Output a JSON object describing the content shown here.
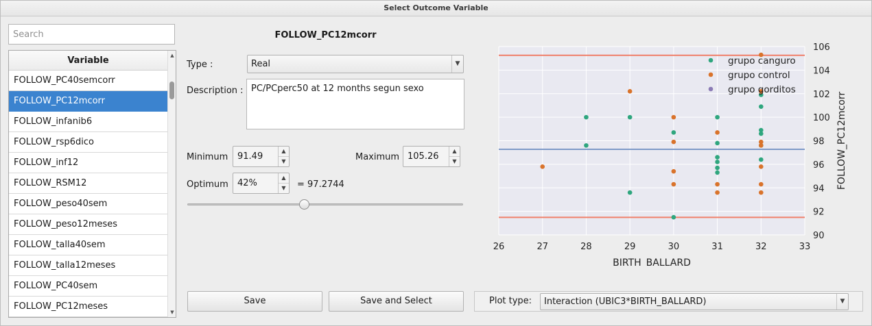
{
  "window": {
    "title": "Select Outcome Variable"
  },
  "search": {
    "placeholder": "Search"
  },
  "variable_list": {
    "header": "Variable",
    "items": [
      "FOLLOW_PC40semcorr",
      "FOLLOW_PC12mcorr",
      "FOLLOW_infanib6",
      "FOLLOW_rsp6dico",
      "FOLLOW_inf12",
      "FOLLOW_RSM12",
      "FOLLOW_peso40sem",
      "FOLLOW_peso12meses",
      "FOLLOW_talla40sem",
      "FOLLOW_talla12meses",
      "FOLLOW_PC40sem",
      "FOLLOW_PC12meses"
    ],
    "selected": "FOLLOW_PC12mcorr"
  },
  "details": {
    "variable_name": "FOLLOW_PC12mcorr",
    "type_label": "Type :",
    "type_value": "Real",
    "description_label": "Description :",
    "description_value": "PC/PCperc50 at 12 months segun sexo",
    "minimum_label": "Minimum",
    "minimum_value": "91.49",
    "maximum_label": "Maximum",
    "maximum_value": "105.26",
    "optimum_label": "Optimum",
    "optimum_value": "42%",
    "optimum_result": "=  97.2744",
    "optimum_fraction": 0.42
  },
  "buttons": {
    "save": "Save",
    "save_and_select": "Save and Select"
  },
  "plot_type": {
    "label": "Plot type:",
    "value": "Interaction (UBIC3*BIRTH_BALLARD)"
  },
  "colors": {
    "selection": "#3b83cf",
    "canguro": "#2fa67e",
    "control": "#d9732b",
    "gorditos": "#8b7bb5",
    "limit_line": "#f0806a",
    "optimum_line": "#7d99c7",
    "plot_bg": "#e9e9f1"
  },
  "chart_data": {
    "type": "scatter",
    "xlabel": "BIRTH_BALLARD",
    "ylabel": "FOLLOW_PC12mcorr",
    "xlim": [
      26,
      33
    ],
    "ylim": [
      90,
      106
    ],
    "xticks": [
      "26",
      "27",
      "28",
      "29",
      "30",
      "31",
      "32",
      "33"
    ],
    "yticks": [
      "90",
      "92",
      "94",
      "96",
      "98",
      "100",
      "102",
      "104",
      "106"
    ],
    "grid": true,
    "legend_position": "top-right",
    "hlines": {
      "maximum": 105.26,
      "optimum": 97.2744,
      "minimum": 91.49
    },
    "series": [
      {
        "name": "grupo canguro",
        "color": "#2fa67e",
        "points": [
          [
            28,
            100.0
          ],
          [
            28,
            97.6
          ],
          [
            29,
            100.0
          ],
          [
            29,
            93.6
          ],
          [
            30,
            98.7
          ],
          [
            30,
            91.5
          ],
          [
            31,
            100.0
          ],
          [
            31,
            97.8
          ],
          [
            31,
            96.6
          ],
          [
            31,
            96.2
          ],
          [
            31,
            95.7
          ],
          [
            31,
            95.3
          ],
          [
            32,
            101.9
          ],
          [
            32,
            100.9
          ],
          [
            32,
            98.9
          ],
          [
            32,
            98.6
          ],
          [
            32,
            97.6
          ],
          [
            32,
            96.4
          ]
        ]
      },
      {
        "name": "grupo control",
        "color": "#d9732b",
        "points": [
          [
            27,
            95.8
          ],
          [
            29,
            102.2
          ],
          [
            30,
            100.0
          ],
          [
            30,
            97.9
          ],
          [
            30,
            95.4
          ],
          [
            30,
            94.3
          ],
          [
            31,
            98.7
          ],
          [
            31,
            94.3
          ],
          [
            31,
            93.6
          ],
          [
            32,
            105.3
          ],
          [
            32,
            102.2
          ],
          [
            32,
            97.9
          ],
          [
            32,
            97.6
          ],
          [
            32,
            95.8
          ],
          [
            32,
            94.3
          ],
          [
            32,
            93.6
          ]
        ]
      },
      {
        "name": "grupo gorditos",
        "color": "#8b7bb5",
        "points": []
      }
    ]
  }
}
